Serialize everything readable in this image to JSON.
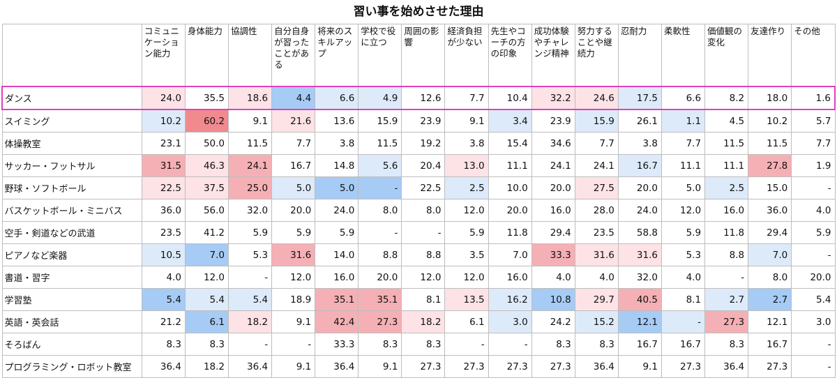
{
  "chart_data": {
    "type": "heatmap",
    "title": "習い事を始めさせた理由",
    "columns": [
      "コミュニケーション能力",
      "身体能力",
      "協調性",
      "自分自身が習ったことがある",
      "将来のスキルアップ",
      "学校で役に立つ",
      "周囲の影響",
      "経済負担が少ない",
      "先生やコーチの方の印象",
      "成功体験やチャレンジ精神",
      "努力することや継続力",
      "忍耐力",
      "柔軟性",
      "価値観の変化",
      "友達作り",
      "その他"
    ],
    "rows": [
      {
        "label": "ダンス",
        "values": [
          "24.0",
          "35.5",
          "18.6",
          "4.4",
          "6.6",
          "4.9",
          "12.6",
          "7.7",
          "10.4",
          "32.2",
          "24.6",
          "17.5",
          "6.6",
          "8.2",
          "18.0",
          "1.6"
        ],
        "shade": [
          "r1",
          "",
          "r1",
          "b2",
          "b1",
          "b1",
          "",
          "",
          "",
          "r1",
          "r1",
          "b1",
          "",
          "",
          "",
          ""
        ]
      },
      {
        "label": "スイミング",
        "values": [
          "10.2",
          "60.2",
          "9.1",
          "21.6",
          "13.6",
          "15.9",
          "23.9",
          "9.1",
          "3.4",
          "23.9",
          "15.9",
          "26.1",
          "1.1",
          "4.5",
          "10.2",
          "5.7"
        ],
        "shade": [
          "b1",
          "r3",
          "",
          "r1",
          "",
          "",
          "",
          "",
          "b1",
          "",
          "b1",
          "",
          "b1",
          "",
          "",
          ""
        ]
      },
      {
        "label": "体操教室",
        "values": [
          "23.1",
          "50.0",
          "11.5",
          "7.7",
          "3.8",
          "11.5",
          "19.2",
          "3.8",
          "15.4",
          "34.6",
          "7.7",
          "3.8",
          "7.7",
          "11.5",
          "11.5",
          "7.7"
        ],
        "shade": [
          "",
          "",
          "",
          "",
          "",
          "",
          "",
          "",
          "",
          "",
          "",
          "",
          "",
          "",
          "",
          ""
        ]
      },
      {
        "label": "サッカー・フットサル",
        "values": [
          "31.5",
          "46.3",
          "24.1",
          "16.7",
          "14.8",
          "5.6",
          "20.4",
          "13.0",
          "11.1",
          "24.1",
          "24.1",
          "16.7",
          "11.1",
          "11.1",
          "27.8",
          "1.9"
        ],
        "shade": [
          "r2",
          "r1",
          "r2",
          "",
          "",
          "b1",
          "",
          "r1",
          "",
          "",
          "",
          "b1",
          "",
          "",
          "r2",
          ""
        ]
      },
      {
        "label": "野球・ソフトボール",
        "values": [
          "22.5",
          "37.5",
          "25.0",
          "5.0",
          "5.0",
          "-",
          "22.5",
          "2.5",
          "10.0",
          "20.0",
          "27.5",
          "20.0",
          "5.0",
          "2.5",
          "15.0",
          "-"
        ],
        "shade": [
          "r1",
          "r1",
          "r2",
          "b1",
          "b2",
          "b2",
          "",
          "b1",
          "",
          "",
          "r1",
          "",
          "",
          "b1",
          "",
          ""
        ]
      },
      {
        "label": "バスケットボール・ミニバス",
        "values": [
          "36.0",
          "56.0",
          "32.0",
          "20.0",
          "24.0",
          "8.0",
          "8.0",
          "12.0",
          "20.0",
          "16.0",
          "28.0",
          "24.0",
          "12.0",
          "16.0",
          "36.0",
          "4.0"
        ],
        "shade": [
          "",
          "",
          "",
          "",
          "",
          "",
          "",
          "",
          "",
          "",
          "",
          "",
          "",
          "",
          "",
          ""
        ]
      },
      {
        "label": "空手・剣道などの武道",
        "values": [
          "23.5",
          "41.2",
          "5.9",
          "5.9",
          "5.9",
          "-",
          "-",
          "5.9",
          "11.8",
          "29.4",
          "23.5",
          "58.8",
          "5.9",
          "11.8",
          "29.4",
          "5.9"
        ],
        "shade": [
          "",
          "",
          "",
          "",
          "",
          "",
          "",
          "",
          "",
          "",
          "",
          "",
          "",
          "",
          "",
          ""
        ]
      },
      {
        "label": "ピアノなど楽器",
        "values": [
          "10.5",
          "7.0",
          "5.3",
          "31.6",
          "14.0",
          "8.8",
          "8.8",
          "3.5",
          "7.0",
          "33.3",
          "31.6",
          "31.6",
          "5.3",
          "8.8",
          "7.0",
          "-"
        ],
        "shade": [
          "b1",
          "b2",
          "",
          "r2",
          "",
          "",
          "",
          "",
          "",
          "r2",
          "r1",
          "r1",
          "",
          "",
          "b1",
          ""
        ]
      },
      {
        "label": "書道・習字",
        "values": [
          "4.0",
          "12.0",
          "-",
          "12.0",
          "16.0",
          "20.0",
          "12.0",
          "12.0",
          "16.0",
          "4.0",
          "4.0",
          "32.0",
          "4.0",
          "-",
          "8.0",
          "20.0"
        ],
        "shade": [
          "",
          "",
          "",
          "",
          "",
          "",
          "",
          "",
          "",
          "",
          "",
          "",
          "",
          "",
          "",
          ""
        ]
      },
      {
        "label": "学習塾",
        "values": [
          "5.4",
          "5.4",
          "5.4",
          "18.9",
          "35.1",
          "35.1",
          "8.1",
          "13.5",
          "16.2",
          "10.8",
          "29.7",
          "40.5",
          "8.1",
          "2.7",
          "2.7",
          "5.4"
        ],
        "shade": [
          "b2",
          "b1",
          "b1",
          "",
          "r2",
          "r2",
          "",
          "r1",
          "b1",
          "b2",
          "r1",
          "r2",
          "",
          "b1",
          "b2",
          ""
        ]
      },
      {
        "label": "英語・英会話",
        "values": [
          "21.2",
          "6.1",
          "18.2",
          "9.1",
          "42.4",
          "27.3",
          "18.2",
          "6.1",
          "3.0",
          "24.2",
          "15.2",
          "12.1",
          "-",
          "27.3",
          "12.1",
          "3.0"
        ],
        "shade": [
          "",
          "b2",
          "r1",
          "",
          "r2",
          "r2",
          "r1",
          "",
          "b1",
          "",
          "b1",
          "b2",
          "b1",
          "r2",
          "",
          ""
        ]
      },
      {
        "label": "そろばん",
        "values": [
          "8.3",
          "8.3",
          "-",
          "-",
          "33.3",
          "8.3",
          "8.3",
          "-",
          "-",
          "8.3",
          "8.3",
          "16.7",
          "16.7",
          "8.3",
          "16.7",
          "-"
        ],
        "shade": [
          "",
          "",
          "",
          "",
          "",
          "",
          "",
          "",
          "",
          "",
          "",
          "",
          "",
          "",
          "",
          ""
        ]
      },
      {
        "label": "プログラミング・ロボット教室",
        "values": [
          "36.4",
          "18.2",
          "36.4",
          "9.1",
          "36.4",
          "9.1",
          "27.3",
          "27.3",
          "27.3",
          "27.3",
          "36.4",
          "9.1",
          "27.3",
          "36.4",
          "27.3",
          "-"
        ],
        "shade": [
          "",
          "",
          "",
          "",
          "",
          "",
          "",
          "",
          "",
          "",
          "",
          "",
          "",
          "",
          "",
          ""
        ]
      }
    ],
    "highlighted_row": "ダンス",
    "colors": {
      "r1": "#fde2e6",
      "r2": "#f5b0b5",
      "r3": "#f08a8f",
      "b1": "#ddeaf9",
      "b2": "#a6cbf5",
      "row_outline": "#e040c0"
    }
  }
}
